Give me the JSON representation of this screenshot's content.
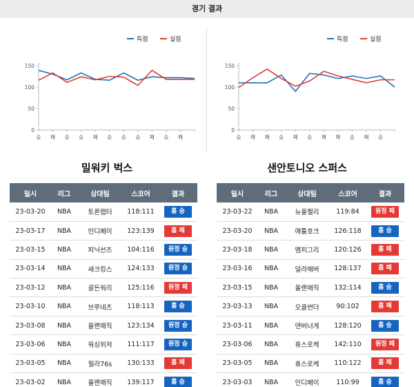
{
  "page": {
    "title": "경기 결과"
  },
  "colors": {
    "score": "#1e6fc0",
    "allowed": "#e03a2f",
    "win": "#1565c0",
    "loss": "#e53935",
    "header": "#5f6d7a"
  },
  "legend": {
    "score": "득점",
    "allowed": "실점"
  },
  "table_headers": [
    "일시",
    "리그",
    "상대팀",
    "스코어",
    "결과"
  ],
  "teams": [
    {
      "name": "밀워키 벅스",
      "rows": [
        {
          "date": "23-03-20",
          "league": "NBA",
          "opponent": "토론랩터",
          "score": "118:111",
          "result": "홈 승",
          "win": true
        },
        {
          "date": "23-03-17",
          "league": "NBA",
          "opponent": "인디페이",
          "score": "123:139",
          "result": "홈 패",
          "win": false
        },
        {
          "date": "23-03-15",
          "league": "NBA",
          "opponent": "피닉선즈",
          "score": "104:116",
          "result": "원정 승",
          "win": true
        },
        {
          "date": "23-03-14",
          "league": "NBA",
          "opponent": "새크킹스",
          "score": "124:133",
          "result": "원정 승",
          "win": true
        },
        {
          "date": "23-03-12",
          "league": "NBA",
          "opponent": "골든워리",
          "score": "125:116",
          "result": "원정 패",
          "win": false
        },
        {
          "date": "23-03-10",
          "league": "NBA",
          "opponent": "브루네츠",
          "score": "118:113",
          "result": "홈 승",
          "win": true
        },
        {
          "date": "23-03-08",
          "league": "NBA",
          "opponent": "올랜매직",
          "score": "123:134",
          "result": "원정 승",
          "win": true
        },
        {
          "date": "23-03-06",
          "league": "NBA",
          "opponent": "워싱위저",
          "score": "111:117",
          "result": "원정 승",
          "win": true
        },
        {
          "date": "23-03-05",
          "league": "NBA",
          "opponent": "필라76s",
          "score": "130:133",
          "result": "홈 패",
          "win": false
        },
        {
          "date": "23-03-02",
          "league": "NBA",
          "opponent": "올랜매직",
          "score": "139:117",
          "result": "홈 승",
          "win": true
        }
      ]
    },
    {
      "name": "샌안토니오 스퍼스",
      "rows": [
        {
          "date": "23-03-22",
          "league": "NBA",
          "opponent": "뉴올펠리",
          "score": "119:84",
          "result": "원정 패",
          "win": false
        },
        {
          "date": "23-03-20",
          "league": "NBA",
          "opponent": "애틀호크",
          "score": "126:118",
          "result": "홈 승",
          "win": true
        },
        {
          "date": "23-03-18",
          "league": "NBA",
          "opponent": "멤피그리",
          "score": "120:126",
          "result": "홈 패",
          "win": false
        },
        {
          "date": "23-03-16",
          "league": "NBA",
          "opponent": "덜라매버",
          "score": "128:137",
          "result": "홈 패",
          "win": false
        },
        {
          "date": "23-03-15",
          "league": "NBA",
          "opponent": "올랜매직",
          "score": "132:114",
          "result": "홈 승",
          "win": true
        },
        {
          "date": "23-03-13",
          "league": "NBA",
          "opponent": "오클썬더",
          "score": "90:102",
          "result": "홈 패",
          "win": false
        },
        {
          "date": "23-03-11",
          "league": "NBA",
          "opponent": "덴버너게",
          "score": "128:120",
          "result": "홈 승",
          "win": true
        },
        {
          "date": "23-03-06",
          "league": "NBA",
          "opponent": "휴스로케",
          "score": "142:110",
          "result": "원정 패",
          "win": false
        },
        {
          "date": "23-03-05",
          "league": "NBA",
          "opponent": "휴스로케",
          "score": "110:122",
          "result": "홈 패",
          "win": false
        },
        {
          "date": "23-03-03",
          "league": "NBA",
          "opponent": "인디페이",
          "score": "110:99",
          "result": "홈 승",
          "win": true
        }
      ]
    }
  ],
  "chart_data": [
    {
      "type": "line",
      "x": [
        "승",
        "패",
        "승",
        "승",
        "패",
        "승",
        "승",
        "승",
        "패",
        "승",
        "패",
        ""
      ],
      "series": [
        {
          "name": "득점",
          "values": [
            139,
            130,
            117,
            133,
            118,
            116,
            133,
            116,
            124,
            122,
            122,
            120
          ]
        },
        {
          "name": "실점",
          "values": [
            116,
            133,
            111,
            124,
            117,
            125,
            123,
            104,
            139,
            118,
            118,
            118
          ]
        }
      ],
      "ylim": [
        0,
        150
      ],
      "yticks": [
        0,
        50,
        100,
        150
      ],
      "legend": "top-right",
      "grid": false
    },
    {
      "type": "line",
      "x": [
        "승",
        "패",
        "패",
        "승",
        "패",
        "승",
        "패",
        "패",
        "승",
        "패",
        "승",
        ""
      ],
      "series": [
        {
          "name": "득점",
          "values": [
            110,
            110,
            110,
            128,
            90,
            132,
            128,
            120,
            126,
            120,
            126,
            100
          ]
        },
        {
          "name": "실점",
          "values": [
            99,
            122,
            142,
            120,
            102,
            114,
            137,
            126,
            118,
            110,
            117,
            117
          ]
        }
      ],
      "ylim": [
        0,
        150
      ],
      "yticks": [
        0,
        50,
        100,
        150
      ],
      "legend": "top-right",
      "grid": false
    }
  ]
}
